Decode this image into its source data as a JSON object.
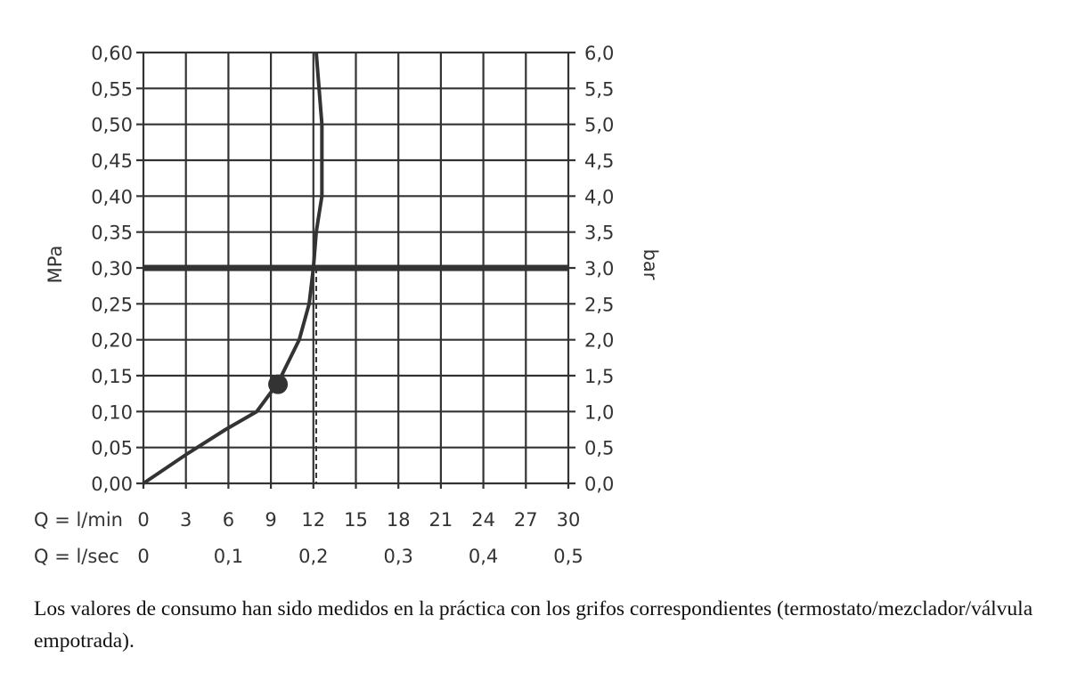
{
  "chart_data": {
    "type": "line",
    "y_left": {
      "label": "MPa",
      "range": [
        0,
        0.6
      ],
      "ticks": [
        "0,60",
        "0,55",
        "0,50",
        "0,45",
        "0,40",
        "0,35",
        "0,30",
        "0,25",
        "0,20",
        "0,15",
        "0,10",
        "0,05",
        "0,00"
      ]
    },
    "y_right": {
      "label": "bar",
      "range": [
        0,
        6
      ],
      "ticks": [
        "6,0",
        "5,5",
        "5,0",
        "4,5",
        "4,0",
        "3,5",
        "3,0",
        "2,5",
        "2,0",
        "1,5",
        "1,0",
        "0,5",
        "0,0"
      ]
    },
    "x_lmin": {
      "label": "Q = l/min",
      "range": [
        0,
        30
      ],
      "ticks": [
        "0",
        "3",
        "6",
        "9",
        "12",
        "15",
        "18",
        "21",
        "24",
        "27",
        "30"
      ]
    },
    "x_lsec": {
      "label": "Q = l/sec",
      "ticks": [
        "0",
        "0,1",
        "0,2",
        "0,3",
        "0,4",
        "0,5"
      ]
    },
    "grid": true,
    "series": [
      {
        "x": [
          0,
          3,
          5.8,
          8,
          9.5,
          11,
          11.7,
          12,
          12.2,
          12.6,
          12.6,
          12.2
        ],
        "y": [
          0,
          0.04,
          0.075,
          0.1,
          0.14,
          0.2,
          0.25,
          0.3,
          0.35,
          0.4,
          0.5,
          0.6
        ]
      }
    ],
    "marker": {
      "x": 9.5,
      "y": 0.138
    },
    "reference_line_y": 0.3,
    "reference_drop_x": 12.2,
    "colors": {
      "curve": "#333333",
      "grid": "#333333",
      "reference": "#333333"
    }
  },
  "caption": "Los valores de consumo han sido medidos en la práctica con los grifos correspondientes (termostato/mezclador/válvula empotrada)."
}
